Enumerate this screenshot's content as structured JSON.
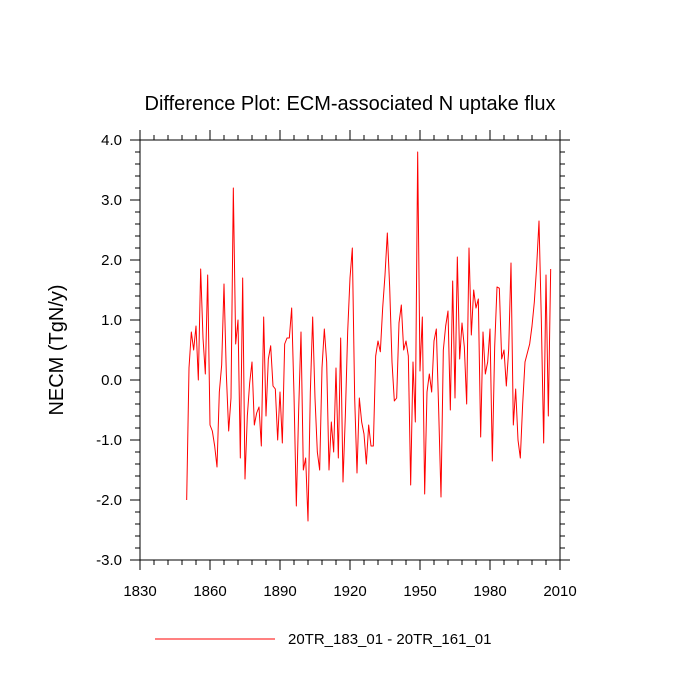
{
  "chart_data": {
    "type": "line",
    "title": "Difference Plot: ECM-associated N uptake flux",
    "xlabel": "",
    "ylabel": "NECM  (TgN/y)",
    "xlim": [
      1830,
      2010
    ],
    "ylim": [
      -3.0,
      4.0
    ],
    "x_ticks": [
      1830,
      1860,
      1890,
      1920,
      1950,
      1980,
      2010
    ],
    "x_tick_labels": [
      "1830",
      "1860",
      "1890",
      "1920",
      "1950",
      "1980",
      "2010"
    ],
    "y_ticks": [
      -3.0,
      -2.0,
      -1.0,
      0.0,
      1.0,
      2.0,
      3.0,
      4.0
    ],
    "y_tick_labels": [
      "-3.0",
      "-2.0",
      "-1.0",
      "0.0",
      "1.0",
      "2.0",
      "3.0",
      "4.0"
    ],
    "legend_position": "bottom",
    "colors": {
      "series": "#ff0000",
      "axis": "#000000"
    },
    "series": [
      {
        "name": "20TR_183_01 - 20TR_161_01",
        "x_start": 1850,
        "x_step": 1,
        "values": [
          -2.0,
          0.2,
          0.8,
          0.5,
          0.9,
          0.0,
          1.85,
          0.7,
          0.1,
          1.75,
          -0.75,
          -0.85,
          -1.1,
          -1.45,
          -0.2,
          0.25,
          1.6,
          0.1,
          -0.85,
          -0.3,
          3.2,
          0.6,
          1.0,
          -1.3,
          1.7,
          -1.65,
          -0.6,
          -0.05,
          0.3,
          -0.75,
          -0.55,
          -0.45,
          -1.1,
          1.05,
          -0.6,
          0.35,
          0.57,
          -0.1,
          -0.15,
          -1.0,
          -0.2,
          -1.05,
          0.6,
          0.7,
          0.7,
          1.2,
          -0.25,
          -2.1,
          -0.5,
          0.8,
          -1.5,
          -1.3,
          -2.35,
          -0.2,
          1.05,
          -0.3,
          -1.2,
          -1.5,
          0.2,
          0.85,
          0.3,
          -1.5,
          -0.7,
          -1.2,
          0.2,
          -1.3,
          0.7,
          -1.7,
          -0.6,
          0.8,
          1.7,
          2.2,
          -0.3,
          -1.55,
          -0.3,
          -0.7,
          -0.9,
          -1.4,
          -0.75,
          -1.1,
          -1.1,
          0.4,
          0.65,
          0.47,
          1.2,
          1.75,
          2.45,
          1.55,
          0.3,
          -0.35,
          -0.3,
          0.95,
          1.25,
          0.5,
          0.65,
          0.4,
          -1.75,
          0.3,
          -0.7,
          3.8,
          0.15,
          1.05,
          -1.9,
          -0.2,
          0.1,
          -0.2,
          0.65,
          0.85,
          -0.5,
          -1.95,
          0.5,
          0.9,
          1.15,
          -0.5,
          1.65,
          -0.3,
          2.05,
          0.35,
          0.95,
          0.55,
          -0.4,
          2.2,
          0.75,
          1.5,
          1.2,
          1.35,
          -0.95,
          0.8,
          0.1,
          0.3,
          0.85,
          -1.35,
          0.55,
          1.55,
          1.53,
          0.35,
          0.5,
          -0.1,
          0.5,
          1.95,
          -0.75,
          -0.15,
          -1.0,
          -1.3,
          -0.4,
          0.3,
          0.45,
          0.6,
          0.9,
          1.3,
          1.9,
          2.65,
          1.0,
          -1.05,
          1.75,
          -0.6,
          1.85
        ]
      }
    ]
  }
}
